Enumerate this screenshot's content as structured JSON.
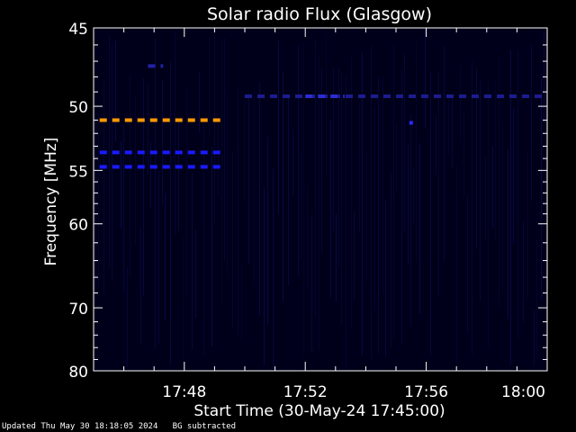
{
  "chart_data": {
    "type": "heatmap",
    "title": "Solar radio Flux (Glasgow)",
    "xlabel": "Start Time (30-May-24 17:45:00)",
    "ylabel": "Frequency [MHz]",
    "x_range_minutes": [
      0,
      15
    ],
    "x_ticks": [
      {
        "value": 3,
        "label": "17:48"
      },
      {
        "value": 7,
        "label": "17:52"
      },
      {
        "value": 11,
        "label": "17:56"
      },
      {
        "value": 15,
        "label": "18:00"
      }
    ],
    "y_scale": "reciprocal",
    "y_range": [
      45,
      80
    ],
    "y_ticks": [
      45,
      50,
      55,
      60,
      70,
      80
    ],
    "y_minor_ticks": [
      46,
      47,
      48,
      49,
      51,
      52,
      53,
      54,
      56,
      57,
      58,
      59,
      62,
      64,
      66,
      68,
      72,
      74,
      76,
      78
    ],
    "background_color": "#00001a",
    "features": [
      {
        "freq_mhz": 51,
        "x_start": 0.2,
        "x_end": 4.3,
        "color": "#ff9900",
        "dash": true
      },
      {
        "freq_mhz": 53.5,
        "x_start": 0.2,
        "x_end": 4.3,
        "color": "#1a1aff",
        "dash": true
      },
      {
        "freq_mhz": 54.7,
        "x_start": 0.2,
        "x_end": 4.3,
        "color": "#1a1aff",
        "dash": true
      },
      {
        "freq_mhz": 47.3,
        "x_start": 1.8,
        "x_end": 2.3,
        "color": "#2222aa",
        "dash": true
      },
      {
        "freq_mhz": 49.3,
        "x_start": 5.0,
        "x_end": 15.0,
        "color": "#1c1c90",
        "dash": true
      },
      {
        "freq_mhz": 49.3,
        "x_start": 7.0,
        "x_end": 8.3,
        "color": "#2c2cd0",
        "dash": true
      }
    ],
    "spots": [
      {
        "x": 10.5,
        "freq_mhz": 51.2,
        "color": "#2a2aff"
      }
    ]
  },
  "footer": {
    "updated": "Updated Thu May 30 18:18:05 2024",
    "note": "BG subtracted"
  }
}
